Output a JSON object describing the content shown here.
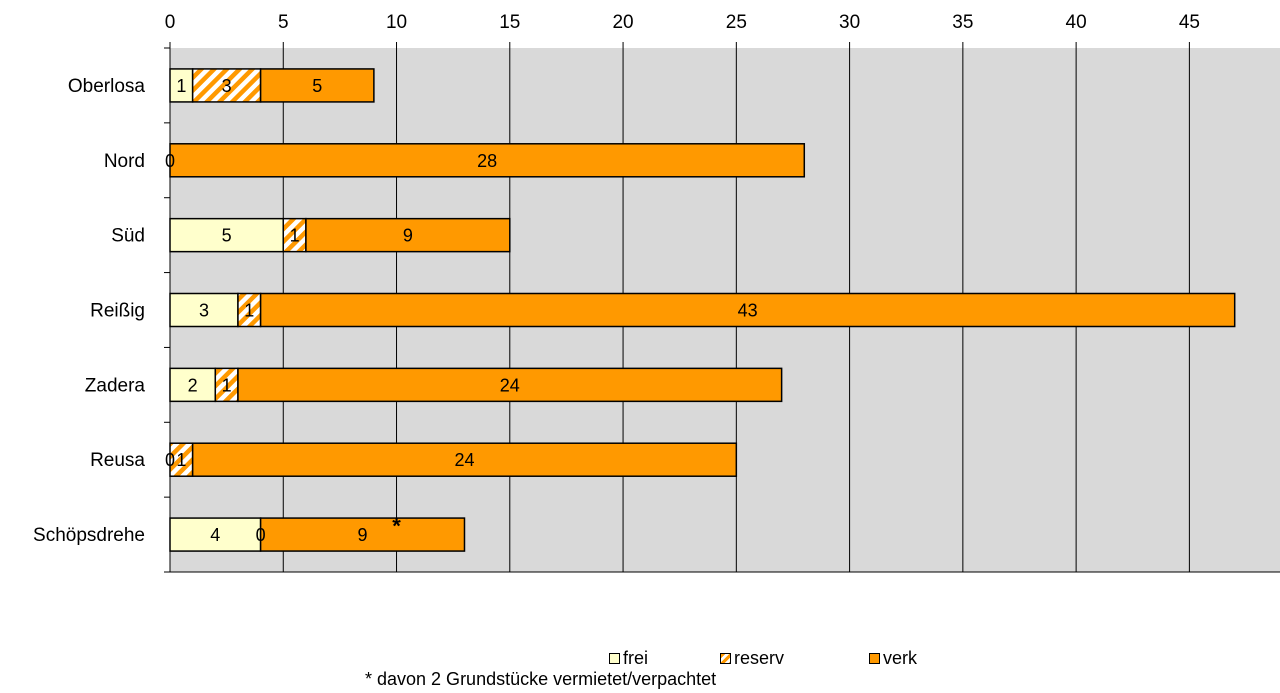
{
  "chart_data": {
    "type": "bar",
    "orientation": "horizontal",
    "stacked": true,
    "categories": [
      "Oberlosa",
      "Nord",
      "Süd",
      "Reißig",
      "Zadera",
      "Reusa",
      "Schöpsdrehe"
    ],
    "series": [
      {
        "name": "frei",
        "values": [
          1,
          0,
          5,
          3,
          2,
          0,
          4
        ],
        "color": "#FFFFCC",
        "labels": [
          "1",
          "0",
          "5",
          "3",
          "2",
          "0",
          "4"
        ]
      },
      {
        "name": "reserv",
        "values": [
          3,
          0,
          1,
          1,
          1,
          1,
          0
        ],
        "color": "#FF9900",
        "pattern": "diagonal-stripes",
        "labels": [
          "3",
          "",
          "1",
          "1",
          "1",
          "1",
          "0"
        ]
      },
      {
        "name": "verk",
        "values": [
          5,
          28,
          9,
          43,
          24,
          24,
          9
        ],
        "color": "#FF9900",
        "labels": [
          "5",
          "28",
          "9",
          "43",
          "24",
          "24",
          "9"
        ]
      }
    ],
    "xlim": [
      0,
      49
    ],
    "xticks": [
      "0",
      "5",
      "10",
      "15",
      "20",
      "25",
      "30",
      "35",
      "40",
      "45"
    ],
    "grid": true,
    "plot_background": "#D9D9D9",
    "legend_position": "bottom",
    "annotation": {
      "category": "Schöpsdrehe",
      "text": "*"
    },
    "footnote": "*  davon 2 Grundstücke vermietet/verpachtet"
  }
}
